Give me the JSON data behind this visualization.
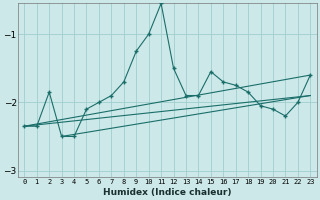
{
  "xlabel": "Humidex (Indice chaleur)",
  "x": [
    0,
    1,
    2,
    3,
    4,
    5,
    6,
    7,
    8,
    9,
    10,
    11,
    12,
    13,
    14,
    15,
    16,
    17,
    18,
    19,
    20,
    21,
    22,
    23
  ],
  "line1": [
    -2.35,
    -2.35,
    -1.85,
    -2.5,
    -2.5,
    -2.1,
    -2.0,
    -1.9,
    -1.7,
    -1.25,
    -1.0,
    -0.55,
    -1.5,
    -1.9,
    -1.9,
    -1.55,
    -1.7,
    -1.75,
    -1.85,
    -2.05,
    -2.1,
    -2.2,
    -2.0,
    -1.6
  ],
  "trend1_x": [
    0,
    23
  ],
  "trend1_y": [
    -2.35,
    -1.6
  ],
  "trend2_x": [
    0,
    23
  ],
  "trend2_y": [
    -2.35,
    -1.9
  ],
  "trend3_x": [
    3,
    23
  ],
  "trend3_y": [
    -2.5,
    -1.9
  ],
  "ylim": [
    -3.1,
    -0.55
  ],
  "yticks": [
    -3,
    -2,
    -1
  ],
  "xlim": [
    -0.5,
    23.5
  ],
  "bg_color": "#cce8e8",
  "line_color": "#1a6e6a",
  "grid_color": "#a0cece"
}
